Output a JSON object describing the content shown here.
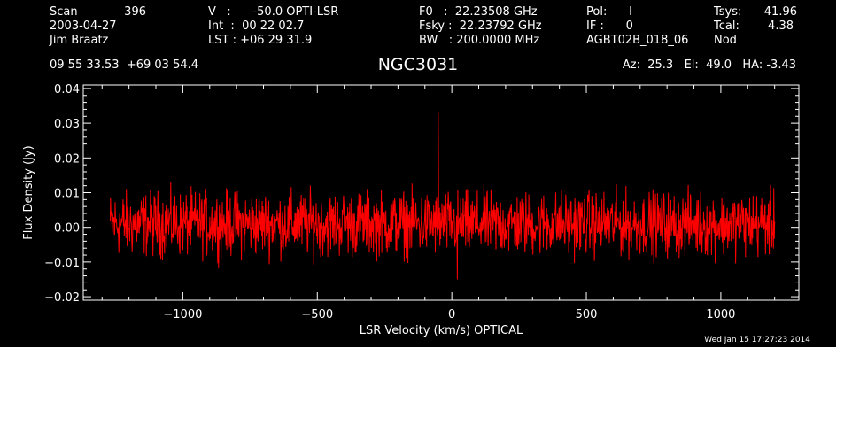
{
  "header": {
    "col1": {
      "line1_label": "Scan",
      "line1_value": "396",
      "line2": "2003-04-27",
      "line3": "Jim Braatz"
    },
    "col2": {
      "line1": "V   :      -50.0 OPTI-LSR",
      "line2": "Int  :  00 22 02.7",
      "line3": "LST : +06 29 31.9"
    },
    "col3": {
      "line1": "F0   :  22.23508 GHz",
      "line2": "Fsky :  22.23792 GHz",
      "line3": "BW   : 200.0000 MHz"
    },
    "col4": {
      "line1": "Pol:      I",
      "line2": "IF :      0",
      "line3": "AGBT02B_018_06"
    },
    "col5": {
      "line1_label": "Tsys:",
      "line1_value": "41.96",
      "line2_label": "Tcal:",
      "line2_value": "4.38",
      "line3": "Nod"
    },
    "coords": "09 55 33.53  +69 03 54.4",
    "source": "NGC3031",
    "pointing": "Az:  25.3   El:  49.0   HA: -3.43"
  },
  "timestamp": "Wed Jan 15 17:27:23 2014",
  "colors": {
    "background": "#000000",
    "axes": "#ffffff",
    "trace": "#ff0000",
    "page": "#ffffff"
  },
  "chart_data": {
    "type": "line",
    "title": "NGC3031",
    "xlabel": "LSR Velocity (km/s) OPTICAL",
    "ylabel": "Flux Density (Jy)",
    "xlim": [
      -1370,
      1290
    ],
    "ylim": [
      -0.021,
      0.041
    ],
    "x_ticks": [
      -1000,
      -500,
      0,
      500,
      1000
    ],
    "x_tick_labels": [
      "−1000",
      "−500",
      "0",
      "500",
      "1000"
    ],
    "y_ticks": [
      -0.02,
      -0.01,
      0.0,
      0.01,
      0.02,
      0.03,
      0.04
    ],
    "y_tick_labels": [
      "−0.02",
      "−0.01",
      "0.00",
      "0.01",
      "0.02",
      "0.03",
      "0.04"
    ],
    "grid": false,
    "series": [
      {
        "color": "#ff0000",
        "description": "noisy spectrum centred near 0 Jy, noise about ±0.012 Jy",
        "x_range": [
          -1270,
          1200
        ],
        "baseline": 0.001,
        "noise_amplitude": 0.012,
        "features": [
          {
            "x": -50,
            "y": 0.033,
            "note": "narrow spike (maser line)"
          },
          {
            "x": 20,
            "y": -0.015,
            "note": "narrow negative dip"
          }
        ]
      }
    ]
  }
}
